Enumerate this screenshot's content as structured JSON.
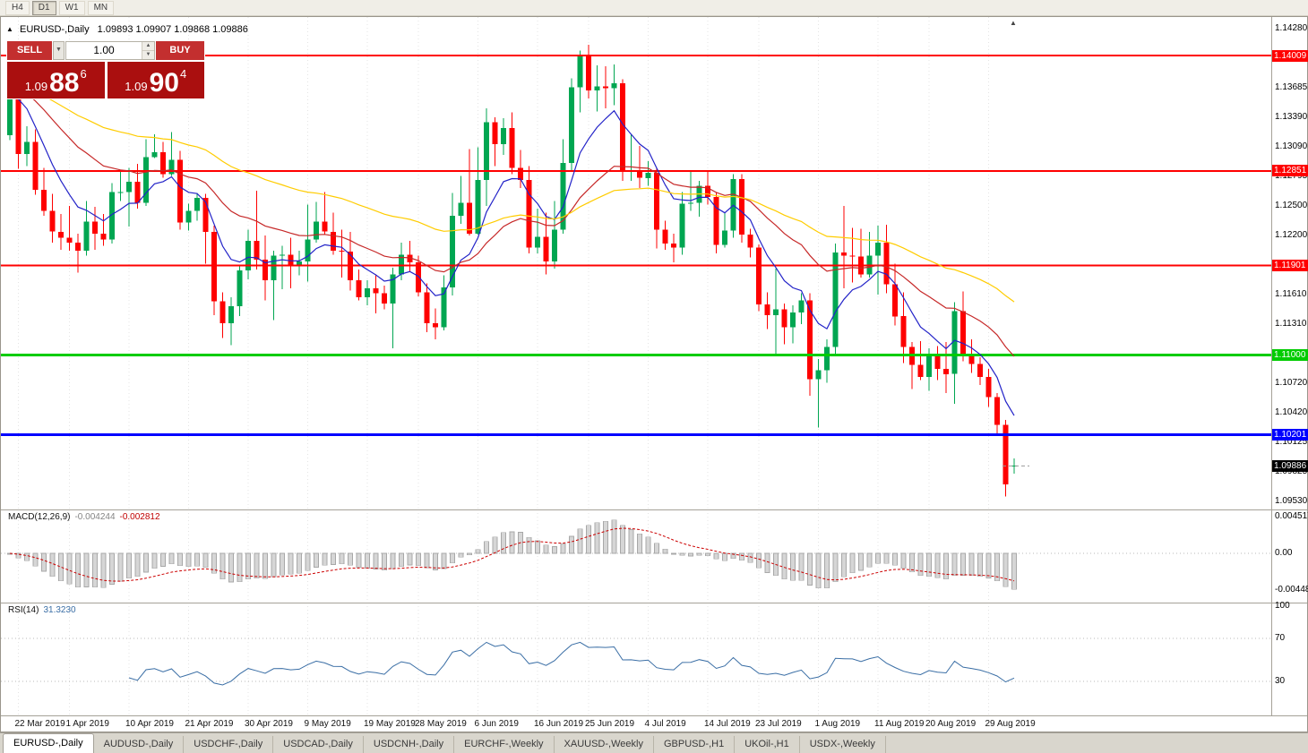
{
  "toolbar": {
    "timeframes": [
      {
        "label": "H4",
        "active": false
      },
      {
        "label": "D1",
        "active": true
      },
      {
        "label": "W1",
        "active": false
      },
      {
        "label": "MN",
        "active": false
      }
    ]
  },
  "chart": {
    "title_symbol": "EURUSD-,Daily",
    "title_ohlc": "1.09893 1.09907 1.09868 1.09886",
    "trade_panel": {
      "sell_label": "SELL",
      "buy_label": "BUY",
      "volume": "1.00",
      "sell_price": {
        "prefix": "1.09",
        "big": "88",
        "sup": "6"
      },
      "buy_price": {
        "prefix": "1.09",
        "big": "90",
        "sup": "4"
      }
    }
  },
  "macd": {
    "label": "MACD(12,26,9)",
    "value_main": "-0.004244",
    "value_signal": "-0.002812",
    "axis": [
      "0.004517",
      "0.00",
      "-0.004480"
    ]
  },
  "rsi": {
    "label": "RSI(14)",
    "value": "31.3230",
    "axis": [
      "100",
      "70",
      "30"
    ],
    "levels": [
      70,
      30
    ]
  },
  "axis": {
    "main_labels": [
      "1.14280",
      "1.13685",
      "1.13390",
      "1.13090",
      "1.12795",
      "1.12500",
      "1.12200",
      "1.11610",
      "1.11310",
      "1.10720",
      "1.10420",
      "1.10125",
      "1.09825",
      "1.09530"
    ],
    "current_price": "1.09886"
  },
  "tabs": [
    {
      "label": "EURUSD-,Daily",
      "active": true
    },
    {
      "label": "AUDUSD-,Daily",
      "active": false
    },
    {
      "label": "USDCHF-,Daily",
      "active": false
    },
    {
      "label": "USDCAD-,Daily",
      "active": false
    },
    {
      "label": "USDCNH-,Daily",
      "active": false
    },
    {
      "label": "EURCHF-,Weekly",
      "active": false
    },
    {
      "label": "XAUUSD-,Weekly",
      "active": false
    },
    {
      "label": "GBPUSD-,H1",
      "active": false
    },
    {
      "label": "UKOil-,H1",
      "active": false
    },
    {
      "label": "USDX-,Weekly",
      "active": false
    }
  ],
  "chart_data": {
    "type": "candlestick",
    "symbol": "EURUSD",
    "period": "Daily",
    "price_range": {
      "top": 1.1428,
      "bottom": 1.0953
    },
    "current_price": 1.09886,
    "colors": {
      "up": "#00a651",
      "down": "#fe0000",
      "grid": "#e4e4e4",
      "macd_hist": "#d6d6d6",
      "macd_hist_border": "#a8a8a8",
      "macd_signal": "#cc0000",
      "rsi": "#3a6ea5",
      "current_dash": "#999999"
    },
    "hlines": [
      {
        "price": 1.14009,
        "color": "#ff0000",
        "width": 2,
        "label": "1.14009"
      },
      {
        "price": 1.12851,
        "color": "#ff0000",
        "width": 2,
        "label": "1.12851"
      },
      {
        "price": 1.11901,
        "color": "#ff0000",
        "width": 2,
        "label": "1.11901"
      },
      {
        "price": 1.11,
        "color": "#00cc00",
        "width": 3,
        "label": "1.11000"
      },
      {
        "price": 1.10201,
        "color": "#0000ff",
        "width": 3,
        "label": "1.10201"
      }
    ],
    "ma": [
      {
        "type": "ema",
        "period": 8,
        "color": "#2323c8"
      },
      {
        "type": "ema",
        "period": 24,
        "color": "#c62828"
      },
      {
        "type": "ema",
        "period": 55,
        "color": "#ffcc00"
      }
    ],
    "macd_params": [
      12,
      26,
      9
    ],
    "rsi_period": 14,
    "x_ticks": [
      {
        "label": "22 Mar 2019",
        "i": 1
      },
      {
        "label": "1 Apr 2019",
        "i": 7
      },
      {
        "label": "10 Apr 2019",
        "i": 14
      },
      {
        "label": "21 Apr 2019",
        "i": 21
      },
      {
        "label": "30 Apr 2019",
        "i": 28
      },
      {
        "label": "9 May 2019",
        "i": 35
      },
      {
        "label": "19 May 2019",
        "i": 42
      },
      {
        "label": "28 May 2019",
        "i": 48
      },
      {
        "label": "6 Jun 2019",
        "i": 55
      },
      {
        "label": "16 Jun 2019",
        "i": 62
      },
      {
        "label": "25 Jun 2019",
        "i": 68
      },
      {
        "label": "4 Jul 2019",
        "i": 75
      },
      {
        "label": "14 Jul 2019",
        "i": 82
      },
      {
        "label": "23 Jul 2019",
        "i": 88
      },
      {
        "label": "1 Aug 2019",
        "i": 95
      },
      {
        "label": "11 Aug 2019",
        "i": 102
      },
      {
        "label": "20 Aug 2019",
        "i": 108
      },
      {
        "label": "29 Aug 2019",
        "i": 115
      }
    ],
    "candles": [
      [
        1.1321,
        1.1378,
        1.1316,
        1.1373
      ],
      [
        1.1373,
        1.138,
        1.1287,
        1.1302
      ],
      [
        1.1302,
        1.133,
        1.129,
        1.1314
      ],
      [
        1.1314,
        1.1327,
        1.1261,
        1.1266
      ],
      [
        1.1266,
        1.1288,
        1.124,
        1.1245
      ],
      [
        1.1245,
        1.1262,
        1.1213,
        1.1224
      ],
      [
        1.1224,
        1.1242,
        1.1206,
        1.1218
      ],
      [
        1.1218,
        1.125,
        1.1205,
        1.1213
      ],
      [
        1.1213,
        1.1222,
        1.1183,
        1.1205
      ],
      [
        1.1205,
        1.1255,
        1.12,
        1.1234
      ],
      [
        1.1234,
        1.1249,
        1.1206,
        1.1222
      ],
      [
        1.1222,
        1.1242,
        1.121,
        1.1216
      ],
      [
        1.1216,
        1.1273,
        1.1212,
        1.1264
      ],
      [
        1.1264,
        1.1286,
        1.1255,
        1.1264
      ],
      [
        1.1264,
        1.1288,
        1.1229,
        1.1274
      ],
      [
        1.1274,
        1.1292,
        1.1247,
        1.1253
      ],
      [
        1.1253,
        1.1317,
        1.125,
        1.1299
      ],
      [
        1.1299,
        1.1322,
        1.1298,
        1.1304
      ],
      [
        1.1304,
        1.1314,
        1.1278,
        1.1282
      ],
      [
        1.1282,
        1.1324,
        1.128,
        1.1296
      ],
      [
        1.1296,
        1.1305,
        1.1226,
        1.1233
      ],
      [
        1.1233,
        1.1252,
        1.1225,
        1.1245
      ],
      [
        1.1245,
        1.1263,
        1.1235,
        1.1258
      ],
      [
        1.1258,
        1.1262,
        1.1192,
        1.1224
      ],
      [
        1.1224,
        1.123,
        1.114,
        1.1154
      ],
      [
        1.1154,
        1.1163,
        1.1117,
        1.1132
      ],
      [
        1.1132,
        1.1158,
        1.111,
        1.1149
      ],
      [
        1.1149,
        1.119,
        1.1139,
        1.1185
      ],
      [
        1.1185,
        1.1226,
        1.1176,
        1.1215
      ],
      [
        1.1215,
        1.1265,
        1.1186,
        1.1196
      ],
      [
        1.1196,
        1.122,
        1.1155,
        1.1175
      ],
      [
        1.1175,
        1.1205,
        1.1135,
        1.12
      ],
      [
        1.12,
        1.121,
        1.1166,
        1.1201
      ],
      [
        1.1201,
        1.1218,
        1.1167,
        1.1191
      ],
      [
        1.1191,
        1.1205,
        1.118,
        1.1194
      ],
      [
        1.1194,
        1.1251,
        1.1174,
        1.1216
      ],
      [
        1.1216,
        1.1254,
        1.1213,
        1.1234
      ],
      [
        1.1234,
        1.1264,
        1.1221,
        1.1224
      ],
      [
        1.1224,
        1.1243,
        1.1201,
        1.1205
      ],
      [
        1.1205,
        1.1226,
        1.1178,
        1.1204
      ],
      [
        1.1204,
        1.1224,
        1.1165,
        1.1175
      ],
      [
        1.1175,
        1.1186,
        1.1155,
        1.1158
      ],
      [
        1.1158,
        1.1175,
        1.115,
        1.1167
      ],
      [
        1.1167,
        1.118,
        1.1142,
        1.1162
      ],
      [
        1.1162,
        1.117,
        1.1146,
        1.1152
      ],
      [
        1.1152,
        1.1188,
        1.1107,
        1.1181
      ],
      [
        1.1181,
        1.1213,
        1.1175,
        1.1201
      ],
      [
        1.1201,
        1.1215,
        1.1184,
        1.1193
      ],
      [
        1.1193,
        1.12,
        1.1159,
        1.1163
      ],
      [
        1.1163,
        1.1172,
        1.1123,
        1.1132
      ],
      [
        1.1132,
        1.1147,
        1.1116,
        1.1128
      ],
      [
        1.1128,
        1.118,
        1.1125,
        1.1168
      ],
      [
        1.1168,
        1.1263,
        1.116,
        1.124
      ],
      [
        1.124,
        1.128,
        1.1232,
        1.1253
      ],
      [
        1.1253,
        1.1307,
        1.122,
        1.1222
      ],
      [
        1.1222,
        1.1309,
        1.1221,
        1.1276
      ],
      [
        1.1276,
        1.1348,
        1.125,
        1.1334
      ],
      [
        1.1334,
        1.1339,
        1.129,
        1.1312
      ],
      [
        1.1312,
        1.1338,
        1.1301,
        1.1328
      ],
      [
        1.1328,
        1.1344,
        1.1282,
        1.1288
      ],
      [
        1.1288,
        1.1306,
        1.1268,
        1.1276
      ],
      [
        1.1276,
        1.129,
        1.1202,
        1.1208
      ],
      [
        1.1208,
        1.1247,
        1.1202,
        1.1219
      ],
      [
        1.1219,
        1.1243,
        1.1181,
        1.1194
      ],
      [
        1.1194,
        1.1255,
        1.1187,
        1.1226
      ],
      [
        1.1226,
        1.1317,
        1.1222,
        1.1293
      ],
      [
        1.1293,
        1.1378,
        1.1285,
        1.1369
      ],
      [
        1.1369,
        1.1406,
        1.1344,
        1.14
      ],
      [
        1.14,
        1.1412,
        1.1358,
        1.1366
      ],
      [
        1.1366,
        1.1391,
        1.1345,
        1.137
      ],
      [
        1.137,
        1.139,
        1.1348,
        1.1368
      ],
      [
        1.1368,
        1.1392,
        1.1351,
        1.1373
      ],
      [
        1.1373,
        1.1377,
        1.1275,
        1.1285
      ],
      [
        1.1285,
        1.1322,
        1.1275,
        1.1286
      ],
      [
        1.1286,
        1.131,
        1.1268,
        1.1278
      ],
      [
        1.1278,
        1.1295,
        1.127,
        1.1283
      ],
      [
        1.1283,
        1.1288,
        1.1207,
        1.1226
      ],
      [
        1.1226,
        1.1235,
        1.1206,
        1.1212
      ],
      [
        1.1212,
        1.1222,
        1.1193,
        1.1208
      ],
      [
        1.1208,
        1.1264,
        1.1201,
        1.1252
      ],
      [
        1.1252,
        1.1285,
        1.1245,
        1.1253
      ],
      [
        1.1253,
        1.1275,
        1.1239,
        1.127
      ],
      [
        1.127,
        1.1284,
        1.1251,
        1.1259
      ],
      [
        1.1259,
        1.1263,
        1.1202,
        1.1211
      ],
      [
        1.1211,
        1.1243,
        1.1208,
        1.1225
      ],
      [
        1.1225,
        1.1282,
        1.1218,
        1.1277
      ],
      [
        1.1277,
        1.1282,
        1.1213,
        1.1221
      ],
      [
        1.1221,
        1.1227,
        1.1198,
        1.1208
      ],
      [
        1.1208,
        1.1211,
        1.1144,
        1.1151
      ],
      [
        1.1151,
        1.1163,
        1.1126,
        1.114
      ],
      [
        1.114,
        1.1187,
        1.1101,
        1.1146
      ],
      [
        1.1146,
        1.1152,
        1.1111,
        1.1128
      ],
      [
        1.1128,
        1.115,
        1.1112,
        1.1143
      ],
      [
        1.1143,
        1.1162,
        1.1131,
        1.1155
      ],
      [
        1.1155,
        1.1162,
        1.1059,
        1.1076
      ],
      [
        1.1076,
        1.1096,
        1.1027,
        1.1085
      ],
      [
        1.1085,
        1.1116,
        1.1072,
        1.1108
      ],
      [
        1.1108,
        1.1212,
        1.1101,
        1.1203
      ],
      [
        1.1203,
        1.125,
        1.1167,
        1.12
      ],
      [
        1.12,
        1.1228,
        1.1173,
        1.1199
      ],
      [
        1.1199,
        1.1227,
        1.1178,
        1.1181
      ],
      [
        1.1181,
        1.1224,
        1.1178,
        1.12
      ],
      [
        1.12,
        1.123,
        1.1161,
        1.1213
      ],
      [
        1.1213,
        1.1231,
        1.1162,
        1.1171
      ],
      [
        1.1171,
        1.1192,
        1.113,
        1.1139
      ],
      [
        1.1139,
        1.1163,
        1.1092,
        1.1108
      ],
      [
        1.1108,
        1.1113,
        1.1066,
        1.109
      ],
      [
        1.109,
        1.1114,
        1.1075,
        1.1078
      ],
      [
        1.1078,
        1.1107,
        1.1064,
        1.1099
      ],
      [
        1.1099,
        1.1109,
        1.1075,
        1.1086
      ],
      [
        1.1086,
        1.1113,
        1.1062,
        1.1081
      ],
      [
        1.1081,
        1.1153,
        1.1051,
        1.1144
      ],
      [
        1.1144,
        1.1164,
        1.1094,
        1.1101
      ],
      [
        1.1101,
        1.1116,
        1.1082,
        1.1091
      ],
      [
        1.1091,
        1.1098,
        1.107,
        1.1078
      ],
      [
        1.1078,
        1.1086,
        1.1048,
        1.1058
      ],
      [
        1.1058,
        1.1062,
        1.102,
        1.103
      ],
      [
        1.103,
        1.1035,
        1.0958,
        1.097
      ],
      [
        1.0988,
        1.0996,
        1.0981,
        1.0989
      ]
    ]
  }
}
